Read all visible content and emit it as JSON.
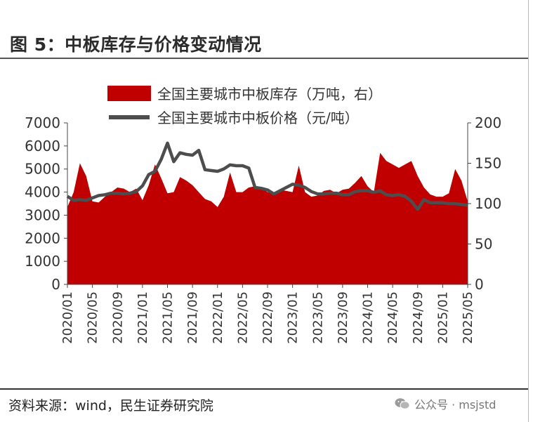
{
  "title": "图 5：中板库存与价格变动情况",
  "source": "资料来源：wind，民生证券研究院",
  "watermark": "公众号 · msjstd",
  "colors": {
    "inventory": "#c00000",
    "price": "#4d4d4d"
  },
  "chart_data": {
    "type": "area",
    "legend_position": "top",
    "grid": false,
    "x_ticks": [
      "2020/01",
      "2020/05",
      "2020/09",
      "2021/01",
      "2021/05",
      "2021/09",
      "2022/01",
      "2022/05",
      "2022/09",
      "2023/01",
      "2023/05",
      "2023/09",
      "2024/01",
      "2024/05",
      "2024/09",
      "2025/01",
      "2025/05"
    ],
    "ylim_left": [
      0,
      7000
    ],
    "yticks_left": [
      "0",
      "1000",
      "2000",
      "3000",
      "4000",
      "5000",
      "6000",
      "7000"
    ],
    "ylim_right": [
      0,
      200
    ],
    "yticks_right": [
      "0",
      "50",
      "100",
      "150",
      "200"
    ],
    "series": [
      {
        "name": "全国主要城市中板库存（万吨，右）",
        "type": "area",
        "axis": "left",
        "x": [
          "2020/01",
          "2020/02",
          "2020/03",
          "2020/04",
          "2020/05",
          "2020/06",
          "2020/07",
          "2020/08",
          "2020/09",
          "2020/10",
          "2020/11",
          "2020/12",
          "2021/01",
          "2021/02",
          "2021/03",
          "2021/04",
          "2021/05",
          "2021/06",
          "2021/07",
          "2021/08",
          "2021/09",
          "2021/10",
          "2021/11",
          "2021/12",
          "2022/01",
          "2022/02",
          "2022/03",
          "2022/04",
          "2022/05",
          "2022/06",
          "2022/07",
          "2022/08",
          "2022/09",
          "2022/10",
          "2022/11",
          "2022/12",
          "2023/01",
          "2023/02",
          "2023/03",
          "2023/04",
          "2023/05",
          "2023/06",
          "2023/07",
          "2023/08",
          "2023/09",
          "2023/10",
          "2023/11",
          "2023/12",
          "2024/01",
          "2024/02",
          "2024/03",
          "2024/04",
          "2024/05",
          "2024/06",
          "2024/07",
          "2024/08",
          "2024/09",
          "2024/10",
          "2024/11",
          "2024/12",
          "2025/01",
          "2025/02",
          "2025/03",
          "2025/04",
          "2025/05"
        ],
        "values": [
          3350,
          4000,
          5250,
          4700,
          3600,
          3550,
          3800,
          4000,
          4200,
          4150,
          4000,
          4150,
          3650,
          4300,
          5200,
          4600,
          3950,
          4000,
          4650,
          4500,
          4300,
          4000,
          3700,
          3600,
          3350,
          3800,
          4850,
          4000,
          4000,
          4200,
          4250,
          4200,
          4000,
          3950,
          4100,
          4050,
          4000,
          5150,
          4000,
          3800,
          3850,
          4050,
          4100,
          3950,
          4100,
          4150,
          4400,
          4700,
          4250,
          4000,
          5700,
          5350,
          5200,
          5050,
          5200,
          5350,
          4700,
          4200,
          3900,
          3800,
          3800,
          3950,
          5000,
          4500,
          3600
        ]
      },
      {
        "name": "全国主要城市中板价格（元/吨）",
        "type": "line",
        "axis": "right",
        "x": [
          "2020/01",
          "2020/02",
          "2020/03",
          "2020/04",
          "2020/05",
          "2020/06",
          "2020/07",
          "2020/08",
          "2020/09",
          "2020/10",
          "2020/11",
          "2020/12",
          "2021/01",
          "2021/02",
          "2021/03",
          "2021/04",
          "2021/05",
          "2021/06",
          "2021/07",
          "2021/08",
          "2021/09",
          "2021/10",
          "2021/11",
          "2021/12",
          "2022/01",
          "2022/02",
          "2022/03",
          "2022/04",
          "2022/05",
          "2022/06",
          "2022/07",
          "2022/08",
          "2022/09",
          "2022/10",
          "2022/11",
          "2022/12",
          "2023/01",
          "2023/02",
          "2023/03",
          "2023/04",
          "2023/05",
          "2023/06",
          "2023/07",
          "2023/08",
          "2023/09",
          "2023/10",
          "2023/11",
          "2023/12",
          "2024/01",
          "2024/02",
          "2024/03",
          "2024/04",
          "2024/05",
          "2024/06",
          "2024/07",
          "2024/08",
          "2024/09",
          "2024/10",
          "2024/11",
          "2024/12",
          "2025/01",
          "2025/02",
          "2025/03",
          "2025/04",
          "2025/05"
        ],
        "values": [
          109,
          104,
          105,
          104,
          107,
          110,
          111,
          113,
          113,
          112,
          113,
          115,
          122,
          136,
          140,
          155,
          175,
          152,
          163,
          161,
          160,
          166,
          142,
          141,
          140,
          143,
          148,
          147,
          147,
          144,
          120,
          119,
          117,
          112,
          116,
          120,
          124,
          123,
          120,
          115,
          112,
          112,
          113,
          113,
          111,
          111,
          115,
          116,
          116,
          114,
          116,
          111,
          110,
          111,
          109,
          103,
          93,
          105,
          101,
          101,
          101,
          100,
          100,
          99,
          98
        ]
      }
    ]
  }
}
